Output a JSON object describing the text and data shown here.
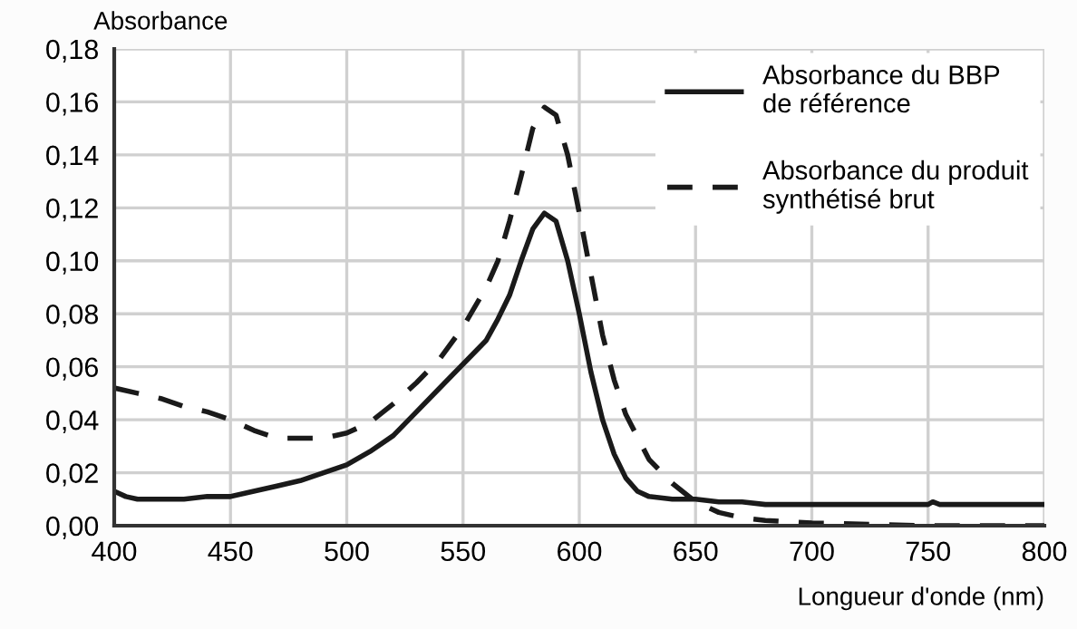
{
  "chart_data": {
    "type": "line",
    "xlabel": "Longueur d'onde (nm)",
    "ylabel": "Absorbance",
    "xlim": [
      400,
      800
    ],
    "ylim": [
      0,
      0.18
    ],
    "xticks": [
      400,
      450,
      500,
      550,
      600,
      650,
      700,
      750,
      800
    ],
    "yticks": [
      {
        "value": 0,
        "label": "0,00"
      },
      {
        "value": 0.02,
        "label": "0,02"
      },
      {
        "value": 0.04,
        "label": "0,04"
      },
      {
        "value": 0.06,
        "label": "0,06"
      },
      {
        "value": 0.08,
        "label": "0,08"
      },
      {
        "value": 0.1,
        "label": "0,10"
      },
      {
        "value": 0.12,
        "label": "0,12"
      },
      {
        "value": 0.14,
        "label": "0,14"
      },
      {
        "value": 0.16,
        "label": "0,16"
      },
      {
        "value": 0.18,
        "label": "0,18"
      }
    ],
    "grid": true,
    "legend": "top right",
    "marker": "none",
    "series": [
      {
        "name": "Absorbance du BBP\nde référence",
        "color": "#1a1a1a",
        "line_style": "solid",
        "x": [
          400,
          405,
          410,
          420,
          430,
          440,
          450,
          460,
          470,
          480,
          490,
          500,
          510,
          520,
          530,
          540,
          550,
          560,
          565,
          570,
          575,
          580,
          585,
          590,
          595,
          600,
          605,
          610,
          615,
          620,
          625,
          630,
          640,
          650,
          660,
          670,
          680,
          700,
          750,
          752,
          755,
          800
        ],
        "values": [
          0.013,
          0.011,
          0.01,
          0.01,
          0.01,
          0.011,
          0.011,
          0.013,
          0.015,
          0.017,
          0.02,
          0.023,
          0.028,
          0.034,
          0.043,
          0.052,
          0.061,
          0.07,
          0.078,
          0.087,
          0.1,
          0.112,
          0.118,
          0.115,
          0.1,
          0.08,
          0.058,
          0.04,
          0.027,
          0.018,
          0.013,
          0.011,
          0.01,
          0.01,
          0.009,
          0.009,
          0.008,
          0.008,
          0.008,
          0.009,
          0.008,
          0.008
        ]
      },
      {
        "name": "Absorbance du produit\nsynthétisé brut",
        "color": "#1a1a1a",
        "line_style": "dashed",
        "x": [
          400,
          410,
          420,
          430,
          440,
          450,
          460,
          470,
          480,
          490,
          500,
          510,
          520,
          530,
          540,
          550,
          560,
          565,
          570,
          575,
          580,
          585,
          590,
          595,
          600,
          605,
          610,
          615,
          620,
          630,
          640,
          650,
          660,
          670,
          680,
          700,
          750,
          800
        ],
        "values": [
          0.052,
          0.05,
          0.048,
          0.045,
          0.043,
          0.04,
          0.036,
          0.033,
          0.033,
          0.033,
          0.035,
          0.039,
          0.046,
          0.054,
          0.063,
          0.075,
          0.09,
          0.1,
          0.115,
          0.132,
          0.15,
          0.158,
          0.155,
          0.14,
          0.118,
          0.095,
          0.072,
          0.055,
          0.042,
          0.025,
          0.016,
          0.009,
          0.005,
          0.003,
          0.002,
          0.001,
          0.0,
          0.0
        ]
      }
    ]
  }
}
